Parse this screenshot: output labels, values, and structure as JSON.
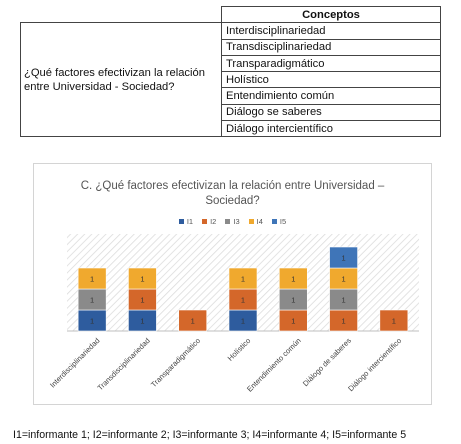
{
  "table": {
    "header": "Conceptos",
    "question": "¿Qué factores efectivizan la relación entre Universidad - Sociedad?",
    "concepts": [
      "Interdisciplinariedad",
      "Transdisciplinariedad",
      "Transparadigmático",
      "Holístico",
      "Entendimiento común",
      "Diálogo se saberes",
      "Diálogo intercientífico"
    ]
  },
  "chart_data": {
    "type": "bar",
    "stacked": true,
    "title": "C. ¿Qué factores efectivizan la relación entre Universidad – Sociedad?",
    "title_lines": [
      "C. ¿Qué factores efectivizan la relación entre Universidad –",
      "Sociedad?"
    ],
    "categories": [
      "Interdisciplinariedad",
      "Transdisciplinariedad",
      "Transparadigmático",
      "Holístico",
      "Entendimiento común",
      "Diálogo de saberes",
      "Diálogo intercientífico"
    ],
    "series": [
      {
        "name": "I1",
        "color": "#2e5c9e",
        "values": [
          1,
          1,
          0,
          1,
          0,
          0,
          0
        ]
      },
      {
        "name": "I2",
        "color": "#d4672a",
        "values": [
          0,
          1,
          1,
          1,
          1,
          1,
          1
        ]
      },
      {
        "name": "I3",
        "color": "#8a8a8a",
        "values": [
          1,
          0,
          0,
          0,
          1,
          1,
          0
        ]
      },
      {
        "name": "I4",
        "color": "#f0a92e",
        "values": [
          1,
          1,
          0,
          1,
          1,
          1,
          0
        ]
      },
      {
        "name": "I5",
        "color": "#3f75b8",
        "values": [
          0,
          0,
          0,
          0,
          0,
          1,
          0
        ]
      }
    ],
    "data_label": "1",
    "legend_position": "top",
    "background_pattern": "diagonal hatch"
  },
  "footnote": "I1=informante 1; I2=informante 2; I3=informante 3; I4=informante 4; I5=informante 5"
}
